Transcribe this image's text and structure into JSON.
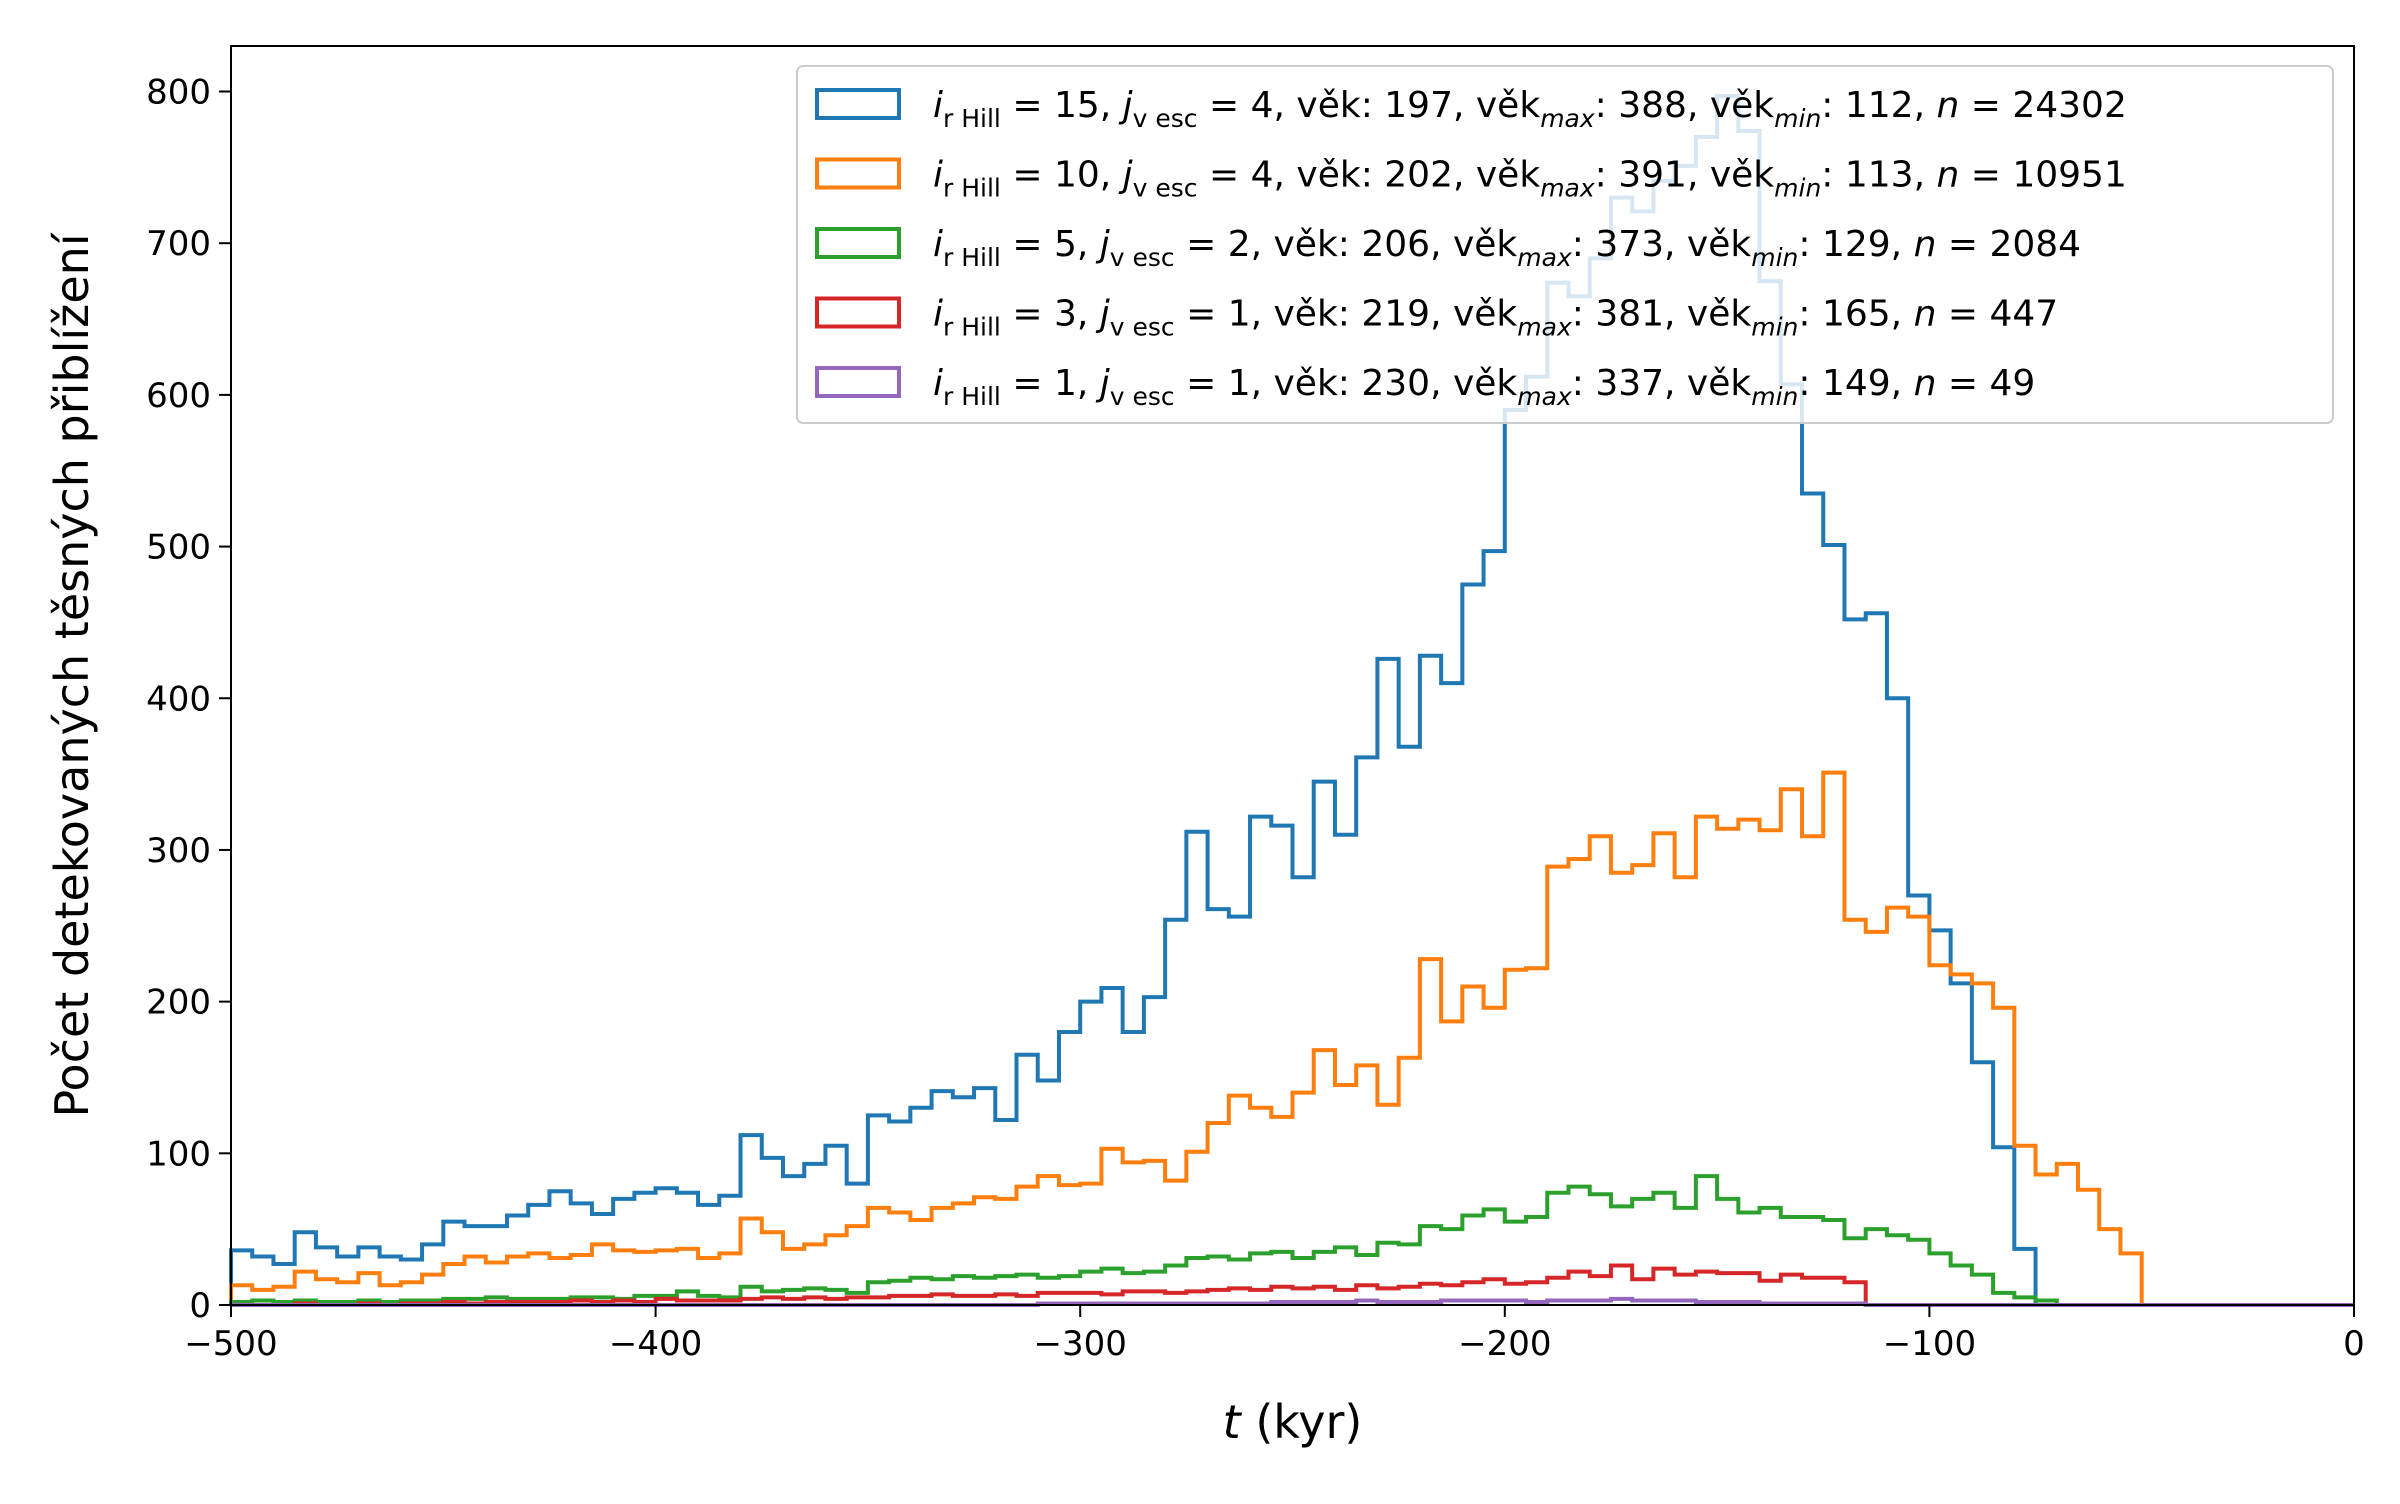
{
  "chart_data": {
    "type": "histogram",
    "xlabel_var": "t",
    "xlabel_unit": "(kyr)",
    "ylabel": "Počet detekovaných těsných přiblížení",
    "xlim": [
      -500,
      0
    ],
    "ylim": [
      0,
      830
    ],
    "xticks": [
      -500,
      -400,
      -300,
      -200,
      -100,
      0
    ],
    "yticks": [
      0,
      100,
      200,
      300,
      400,
      500,
      600,
      700,
      800
    ],
    "xtick_labels": [
      "−500",
      "−400",
      "−300",
      "−200",
      "−100",
      "0"
    ],
    "ytick_labels": [
      "0",
      "100",
      "200",
      "300",
      "400",
      "500",
      "600",
      "700",
      "800"
    ],
    "grid": false,
    "legend_position": "top-right",
    "bin_start": -500,
    "bin_width": 5,
    "series": [
      {
        "color": "#1f77b4",
        "legend": {
          "i_sub": "r Hill",
          "i_val": "15",
          "j_sub": "v esc",
          "j_val": "4",
          "vek": "197",
          "vek_max": "388",
          "vek_min": "112",
          "n": "24302"
        },
        "values": [
          36,
          32,
          27,
          48,
          38,
          32,
          38,
          32,
          30,
          40,
          55,
          52,
          52,
          59,
          66,
          75,
          67,
          60,
          70,
          74,
          77,
          74,
          66,
          72,
          112,
          97,
          85,
          93,
          105,
          80,
          125,
          121,
          130,
          141,
          137,
          143,
          122,
          165,
          148,
          180,
          200,
          209,
          180,
          203,
          254,
          312,
          261,
          256,
          322,
          316,
          282,
          345,
          310,
          361,
          426,
          368,
          428,
          410,
          475,
          497,
          590,
          612,
          674,
          665,
          690,
          730,
          721,
          741,
          751,
          770,
          797,
          774,
          675,
          607,
          535,
          501,
          452,
          456,
          400,
          270,
          247,
          212,
          160,
          104,
          37,
          0,
          0,
          0,
          0,
          0,
          0,
          0,
          0,
          0,
          0,
          0,
          0,
          0,
          0,
          0
        ]
      },
      {
        "color": "#ff7f0e",
        "legend": {
          "i_sub": "r Hill",
          "i_val": "10",
          "j_sub": "v esc",
          "j_val": "4",
          "vek": "202",
          "vek_max": "391",
          "vek_min": "113",
          "n": "10951"
        },
        "values": [
          13,
          10,
          12,
          22,
          17,
          15,
          21,
          13,
          15,
          20,
          27,
          32,
          28,
          32,
          34,
          31,
          33,
          40,
          36,
          35,
          36,
          37,
          31,
          34,
          57,
          48,
          37,
          40,
          46,
          52,
          64,
          61,
          56,
          64,
          67,
          71,
          70,
          78,
          85,
          79,
          80,
          103,
          94,
          95,
          82,
          101,
          120,
          138,
          130,
          124,
          140,
          168,
          145,
          158,
          132,
          163,
          228,
          187,
          210,
          196,
          221,
          222,
          289,
          294,
          309,
          285,
          290,
          311,
          282,
          322,
          314,
          320,
          313,
          340,
          309,
          351,
          254,
          246,
          262,
          256,
          224,
          218,
          212,
          196,
          105,
          86,
          93,
          76,
          50,
          34,
          0,
          0,
          0,
          0,
          0,
          0,
          0,
          0,
          0,
          0
        ]
      },
      {
        "color": "#2ca02c",
        "legend": {
          "i_sub": "r Hill",
          "i_val": " 5",
          "j_sub": "v esc",
          "j_val": "2",
          "vek": "206",
          "vek_max": "373",
          "vek_min": "129",
          "n": "2084"
        },
        "values": [
          2,
          3,
          2,
          3,
          2,
          2,
          3,
          2,
          3,
          3,
          4,
          4,
          5,
          4,
          4,
          4,
          5,
          5,
          4,
          6,
          6,
          9,
          6,
          5,
          12,
          9,
          10,
          11,
          10,
          8,
          15,
          16,
          18,
          17,
          19,
          18,
          19,
          20,
          18,
          19,
          22,
          24,
          21,
          22,
          26,
          31,
          32,
          30,
          34,
          35,
          31,
          35,
          38,
          33,
          41,
          40,
          52,
          50,
          59,
          63,
          55,
          58,
          74,
          78,
          73,
          65,
          70,
          74,
          64,
          85,
          70,
          61,
          64,
          58,
          58,
          56,
          44,
          50,
          46,
          43,
          34,
          26,
          20,
          8,
          5,
          3,
          0,
          0,
          0,
          0,
          0,
          0,
          0,
          0,
          0,
          0,
          0,
          0,
          0,
          0
        ]
      },
      {
        "color": "#d62728",
        "legend": {
          "i_sub": "r Hill",
          "i_val": " 3",
          "j_sub": "v esc",
          "j_val": "1",
          "vek": "219",
          "vek_max": "381",
          "vek_min": "165",
          "n": "447"
        },
        "values": [
          0,
          0,
          0,
          1,
          0,
          0,
          1,
          0,
          1,
          1,
          2,
          1,
          2,
          2,
          2,
          2,
          3,
          2,
          3,
          2,
          4,
          3,
          3,
          3,
          4,
          5,
          4,
          5,
          4,
          5,
          5,
          6,
          6,
          7,
          6,
          6,
          7,
          6,
          8,
          8,
          8,
          7,
          9,
          9,
          8,
          9,
          10,
          11,
          10,
          12,
          11,
          12,
          10,
          13,
          11,
          12,
          14,
          13,
          15,
          17,
          14,
          15,
          18,
          22,
          19,
          26,
          17,
          24,
          20,
          22,
          21,
          21,
          16,
          20,
          18,
          18,
          15,
          0,
          0,
          0,
          0,
          0,
          0,
          0,
          0,
          0,
          0,
          0,
          0,
          0,
          0,
          0,
          0,
          0,
          0,
          0,
          0,
          0,
          0,
          0
        ]
      },
      {
        "color": "#9467bd",
        "legend": {
          "i_sub": "r Hill",
          "i_val": " 1",
          "j_sub": "v esc",
          "j_val": "1",
          "vek": "230",
          "vek_max": "337",
          "vek_min": "149",
          "n": "49"
        },
        "values": [
          0,
          0,
          0,
          0,
          0,
          0,
          0,
          0,
          0,
          0,
          0,
          0,
          0,
          0,
          0,
          0,
          0,
          0,
          0,
          0,
          0,
          0,
          0,
          0,
          0,
          0,
          0,
          0,
          0,
          0,
          0,
          0,
          0,
          0,
          0,
          0,
          0,
          0,
          1,
          1,
          1,
          1,
          1,
          1,
          1,
          1,
          1,
          1,
          1,
          2,
          2,
          2,
          2,
          3,
          2,
          2,
          2,
          3,
          3,
          3,
          3,
          2,
          3,
          3,
          3,
          4,
          3,
          3,
          3,
          2,
          2,
          2,
          1,
          1,
          1,
          1,
          1,
          0,
          0,
          0,
          0,
          0,
          0,
          0,
          0,
          0,
          0,
          0,
          0,
          0,
          0,
          0,
          0,
          0,
          0,
          0,
          0,
          0,
          0,
          0
        ]
      }
    ]
  }
}
